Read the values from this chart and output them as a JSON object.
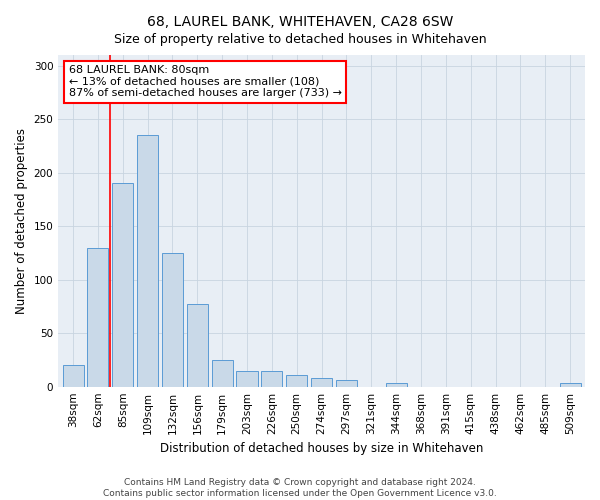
{
  "title": "68, LAUREL BANK, WHITEHAVEN, CA28 6SW",
  "subtitle": "Size of property relative to detached houses in Whitehaven",
  "xlabel": "Distribution of detached houses by size in Whitehaven",
  "ylabel": "Number of detached properties",
  "categories": [
    "38sqm",
    "62sqm",
    "85sqm",
    "109sqm",
    "132sqm",
    "156sqm",
    "179sqm",
    "203sqm",
    "226sqm",
    "250sqm",
    "274sqm",
    "297sqm",
    "321sqm",
    "344sqm",
    "368sqm",
    "391sqm",
    "415sqm",
    "438sqm",
    "462sqm",
    "485sqm",
    "509sqm"
  ],
  "values": [
    20,
    130,
    190,
    235,
    125,
    77,
    25,
    15,
    15,
    11,
    8,
    6,
    0,
    3,
    0,
    0,
    0,
    0,
    0,
    0,
    3
  ],
  "bar_color": "#c9d9e8",
  "bar_edge_color": "#5b9bd5",
  "red_line_x": 1.5,
  "annotation_text": "68 LAUREL BANK: 80sqm\n← 13% of detached houses are smaller (108)\n87% of semi-detached houses are larger (733) →",
  "annotation_box_color": "white",
  "annotation_box_edge_color": "red",
  "red_line_color": "red",
  "ylim": [
    0,
    310
  ],
  "yticks": [
    0,
    50,
    100,
    150,
    200,
    250,
    300
  ],
  "footer_text": "Contains HM Land Registry data © Crown copyright and database right 2024.\nContains public sector information licensed under the Open Government Licence v3.0.",
  "title_fontsize": 10,
  "subtitle_fontsize": 9,
  "xlabel_fontsize": 8.5,
  "ylabel_fontsize": 8.5,
  "tick_fontsize": 7.5,
  "annotation_fontsize": 8,
  "footer_fontsize": 6.5,
  "bg_color": "#e8eef5"
}
